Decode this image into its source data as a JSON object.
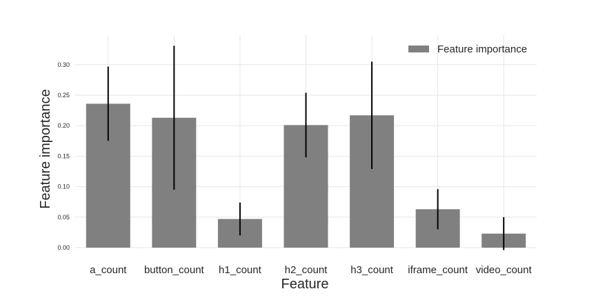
{
  "chart_data": {
    "type": "bar",
    "xlabel": "Feature",
    "ylabel": "Feature importance",
    "categories": [
      "a_count",
      "button_count",
      "h1_count",
      "h2_count",
      "h3_count",
      "iframe_count",
      "video_count"
    ],
    "series": [
      {
        "name": "Feature importance",
        "values": [
          0.236,
          0.213,
          0.047,
          0.201,
          0.217,
          0.063,
          0.023
        ],
        "error": [
          0.061,
          0.118,
          0.027,
          0.053,
          0.088,
          0.033,
          0.027
        ]
      }
    ],
    "yticks": [
      "0.00",
      "0.05",
      "0.10",
      "0.15",
      "0.20",
      "0.25",
      "0.30"
    ],
    "ylim": [
      -0.004,
      0.35
    ],
    "grid": true,
    "legend": "top-right",
    "colors": {
      "bar": "#808080",
      "error_bar": "#000000",
      "grid": "#e6e6e6"
    }
  }
}
